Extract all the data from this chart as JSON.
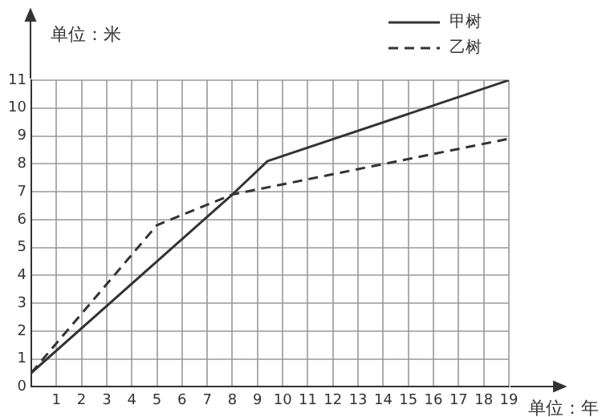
{
  "chart_data": {
    "type": "line",
    "xlabel": "单位：年",
    "ylabel": "单位：米",
    "xlim": [
      0,
      19
    ],
    "ylim": [
      0,
      11
    ],
    "xticks": [
      1,
      2,
      3,
      4,
      5,
      6,
      7,
      8,
      9,
      10,
      11,
      12,
      13,
      14,
      15,
      16,
      17,
      18,
      19
    ],
    "yticks": [
      0,
      1,
      2,
      3,
      4,
      5,
      6,
      7,
      8,
      9,
      10,
      11
    ],
    "grid": true,
    "legend": "top right",
    "marker": "none",
    "series": [
      {
        "name": "甲树",
        "color": "#333333",
        "line_style": "solid",
        "x": [
          0,
          8,
          9.4,
          19
        ],
        "values": [
          0.5,
          6.9,
          8.1,
          11
        ]
      },
      {
        "name": "乙树",
        "color": "#333333",
        "line_style": "dashed",
        "x": [
          0,
          5,
          8,
          19
        ],
        "values": [
          0.5,
          5.8,
          6.9,
          8.9
        ]
      }
    ]
  }
}
